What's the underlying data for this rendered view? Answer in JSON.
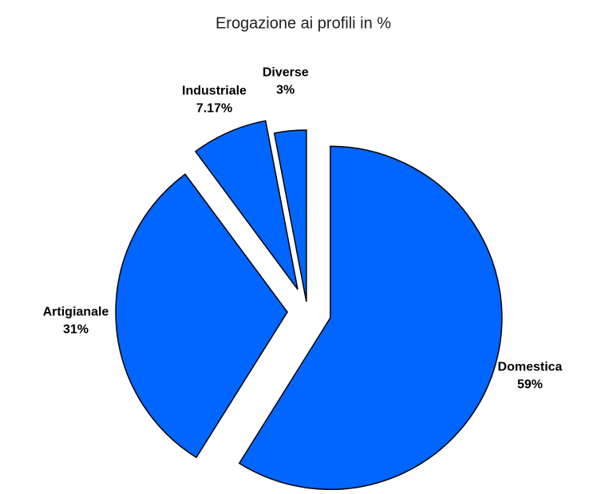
{
  "chart_data": {
    "type": "pie",
    "title": "Erogazione ai profili in %",
    "categories": [
      "Domestica",
      "Artigianale",
      "Industriale",
      "Diverse"
    ],
    "values": [
      59,
      31,
      7.17,
      3
    ],
    "value_labels": [
      "59%",
      "31%",
      "7.17%",
      "3%"
    ],
    "color": "#0066ff"
  }
}
